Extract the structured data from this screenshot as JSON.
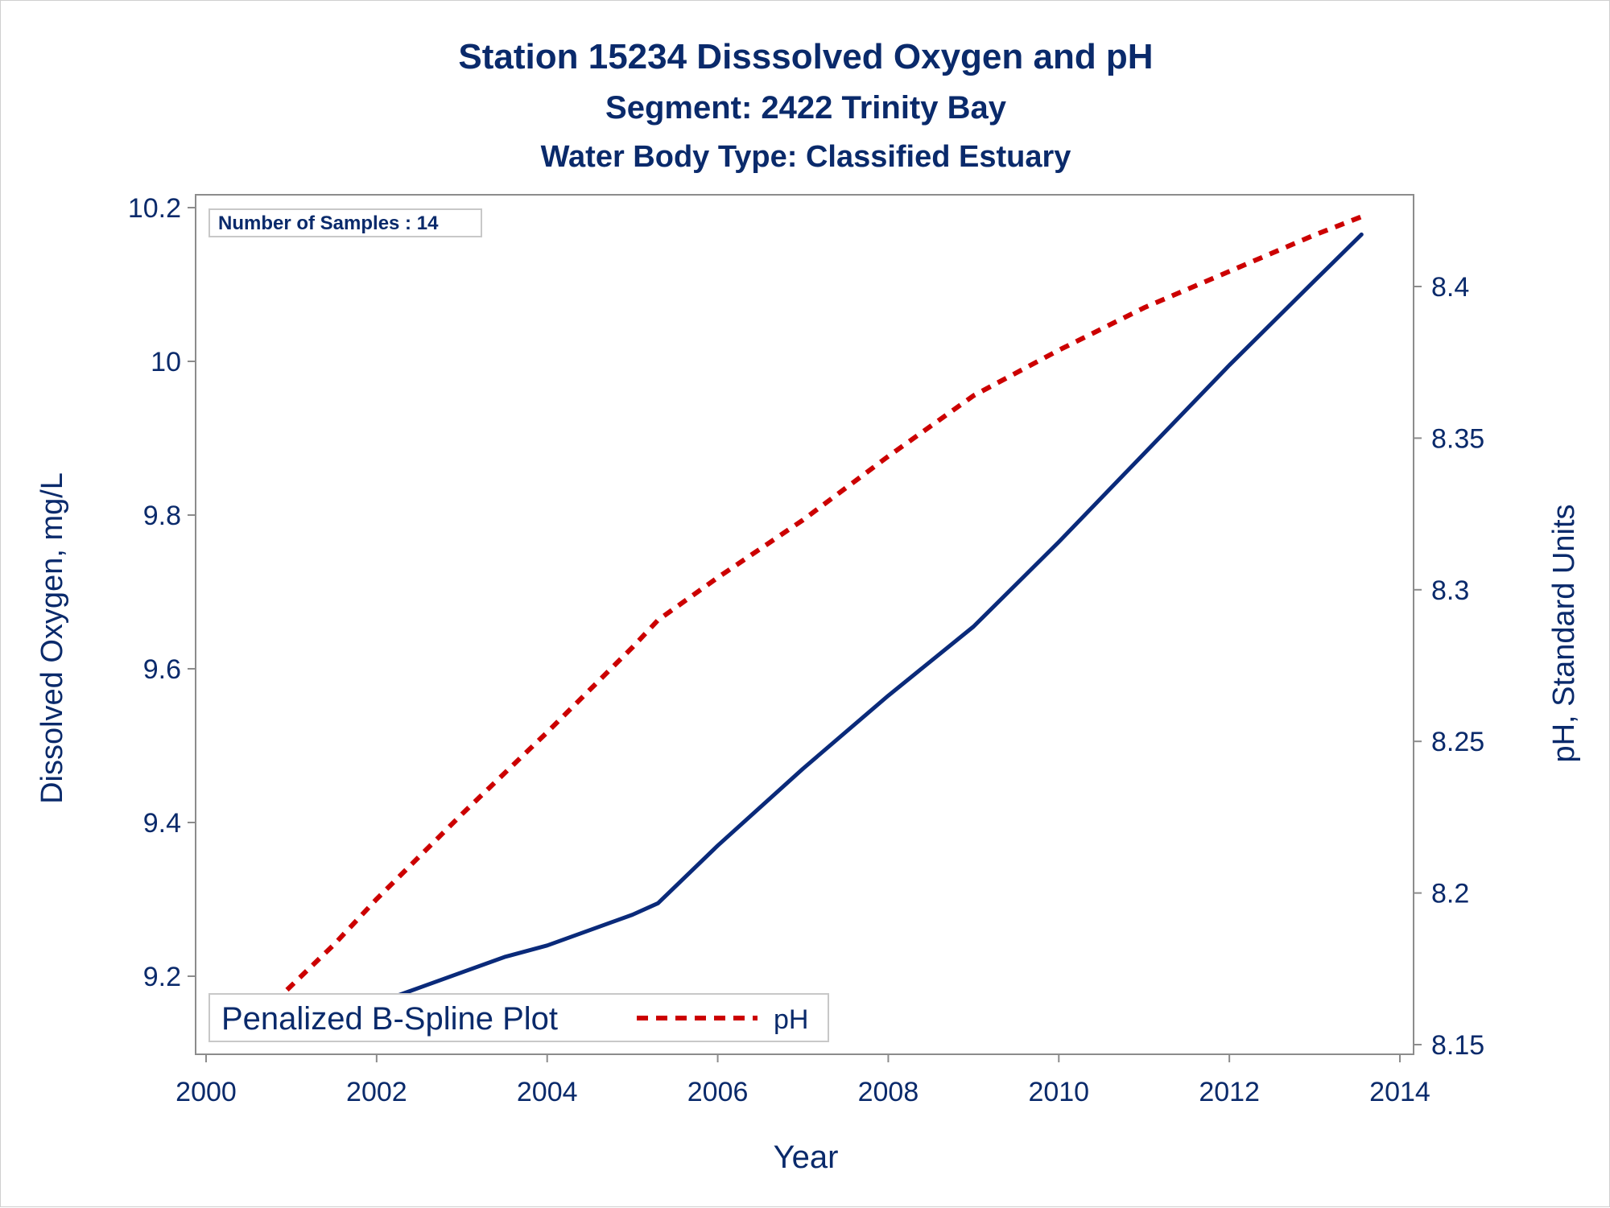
{
  "titles": {
    "line1": "Station 15234   Disssolved Oxygen and pH",
    "line2": "Segment: 2422  Trinity Bay",
    "line3": "Water Body Type: Classified Estuary"
  },
  "inset_label": "Number of Samples : 14",
  "chart_data": {
    "type": "line",
    "title": "Station 15234   Disssolved Oxygen and pH",
    "subtitles": [
      "Segment: 2422  Trinity Bay",
      "Water Body Type: Classified Estuary"
    ],
    "xlabel": "Year",
    "ylabel_left": "Dissolved Oxygen, mg/L",
    "ylabel_right": "pH, Standard Units",
    "xlim": [
      2000,
      2014
    ],
    "ylim_left": [
      9.13,
      10.22
    ],
    "ylim_right": [
      8.15,
      8.426
    ],
    "x_ticks": [
      2000,
      2002,
      2004,
      2006,
      2008,
      2010,
      2012,
      2014
    ],
    "y_left_ticks": [
      9.2,
      9.4,
      9.6,
      9.8,
      10,
      10.2
    ],
    "y_right_ticks": [
      8.15,
      8.2,
      8.25,
      8.3,
      8.35,
      8.4
    ],
    "grid": false,
    "legend_position": "bottom-left inside",
    "legend_title": "Penalized B-Spline Plot",
    "series": [
      {
        "label": "Dissolved Oxygen",
        "axis": "left",
        "color": "#0a2a7a",
        "style": "solid",
        "x": [
          2000.8,
          2001.5,
          2002.0,
          2002.5,
          2003.0,
          2003.5,
          2004.0,
          2004.5,
          2005.0,
          2005.3,
          2006.0,
          2007.0,
          2008.0,
          2009.0,
          2010.0,
          2011.0,
          2012.0,
          2013.0,
          2013.55
        ],
        "y": [
          9.13,
          9.145,
          9.165,
          9.185,
          9.205,
          9.225,
          9.24,
          9.26,
          9.28,
          9.295,
          9.37,
          9.47,
          9.565,
          9.655,
          9.765,
          9.88,
          9.995,
          10.105,
          10.165
        ]
      },
      {
        "name": "pH",
        "axis": "right",
        "color": "#cc0000",
        "style": "dashed",
        "x": [
          2000.8,
          2001.5,
          2002.0,
          2003.0,
          2004.0,
          2005.0,
          2005.3,
          2006.0,
          2007.0,
          2008.0,
          2009.0,
          2009.2,
          2010.0,
          2011.0,
          2012.0,
          2013.0,
          2013.55
        ],
        "y": [
          8.164,
          8.183,
          8.198,
          8.226,
          8.253,
          8.281,
          8.29,
          8.304,
          8.323,
          8.344,
          8.364,
          8.367,
          8.379,
          8.393,
          8.405,
          8.417,
          8.423
        ]
      }
    ]
  },
  "colors": {
    "text": "#0a2a6b",
    "axis": "#8c8c8c",
    "do_line": "#0a2a7a",
    "ph_line": "#cc0000"
  }
}
